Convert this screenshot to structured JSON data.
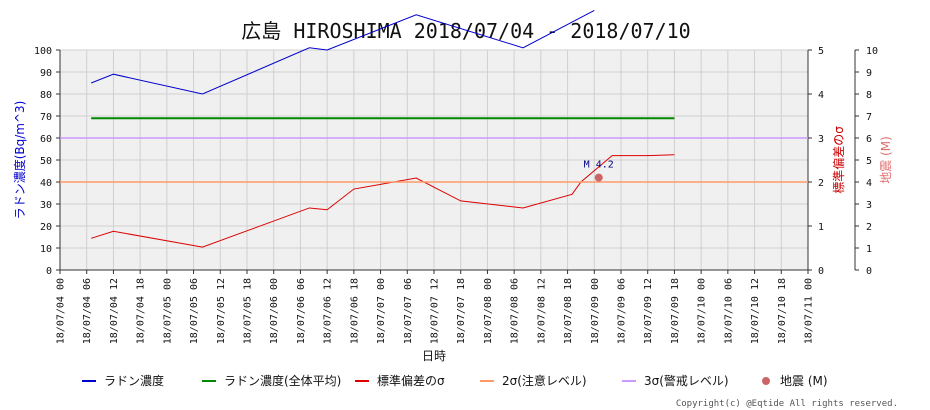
{
  "chart_data": {
    "type": "line",
    "title": "広島 HIROSHIMA 2018/07/04 - 2018/07/10",
    "xlabel": "日時",
    "ylabel_left": "ラドン濃度(Bq/m^3)",
    "ylabel_right1": "標準偏差のσ",
    "ylabel_right2": "地震 (M)",
    "y_left_range": [
      0,
      100
    ],
    "y_left_ticks": [
      "0",
      "10",
      "20",
      "30",
      "40",
      "50",
      "60",
      "70",
      "80",
      "90",
      "100"
    ],
    "y_right1_range": [
      0,
      5
    ],
    "y_right1_ticks": [
      "0",
      "1",
      "2",
      "3",
      "4",
      "5"
    ],
    "y_right2_range": [
      0,
      10
    ],
    "y_right2_ticks": [
      "0",
      "1",
      "2",
      "3",
      "4",
      "5",
      "6",
      "7",
      "8",
      "9",
      "10"
    ],
    "x_range_hours": [
      0,
      168
    ],
    "x_tick_labels": [
      "18/07/04 00",
      "18/07/04 06",
      "18/07/04 12",
      "18/07/04 18",
      "18/07/05 00",
      "18/07/05 06",
      "18/07/05 12",
      "18/07/05 18",
      "18/07/06 00",
      "18/07/06 06",
      "18/07/06 12",
      "18/07/06 18",
      "18/07/07 00",
      "18/07/07 06",
      "18/07/07 12",
      "18/07/07 18",
      "18/07/08 00",
      "18/07/08 06",
      "18/07/08 12",
      "18/07/08 18",
      "18/07/09 00",
      "18/07/09 06",
      "18/07/09 12",
      "18/07/09 18",
      "18/07/10 00",
      "18/07/10 06",
      "18/07/10 12",
      "18/07/10 18",
      "18/07/11 00"
    ],
    "grid": true,
    "legend_position": "bottom",
    "series": [
      {
        "name": "ラドン濃度",
        "axis": "left",
        "color": "#0000cc",
        "x": [
          7,
          12,
          32,
          56,
          60,
          80,
          104,
          120
        ],
        "y": [
          85,
          89,
          80,
          101,
          100,
          116,
          101,
          118
        ]
      },
      {
        "name": "ラドン濃度(全体平均)",
        "axis": "left",
        "color": "#008800",
        "x": [
          7,
          138
        ],
        "y": [
          69,
          69
        ]
      },
      {
        "name": "標準偏差のσ",
        "axis": "right1",
        "color": "#dd0000",
        "x": [
          7,
          12,
          32,
          56,
          60,
          66,
          80,
          90,
          104,
          115,
          117,
          124,
          128,
          132,
          138
        ],
        "y": [
          0.72,
          0.88,
          0.52,
          1.41,
          1.37,
          1.84,
          2.09,
          1.57,
          1.41,
          1.72,
          2.0,
          2.6,
          2.6,
          2.6,
          2.62
        ]
      },
      {
        "name": "2σ(注意レベル)",
        "axis": "right1",
        "color": "#ff9966",
        "x": [
          0,
          168
        ],
        "y": [
          2,
          2
        ]
      },
      {
        "name": "3σ(警戒レベル)",
        "axis": "right1",
        "color": "#cc99ff",
        "x": [
          0,
          168
        ],
        "y": [
          3,
          3
        ]
      },
      {
        "name": "地震 (M)",
        "axis": "right2",
        "type": "scatter",
        "color": "#cc6666",
        "x": [
          121
        ],
        "y": [
          4.2
        ],
        "labels": [
          "M 4.2"
        ]
      }
    ]
  },
  "copyright": "Copyright(c) @Eqtide All rights reserved."
}
